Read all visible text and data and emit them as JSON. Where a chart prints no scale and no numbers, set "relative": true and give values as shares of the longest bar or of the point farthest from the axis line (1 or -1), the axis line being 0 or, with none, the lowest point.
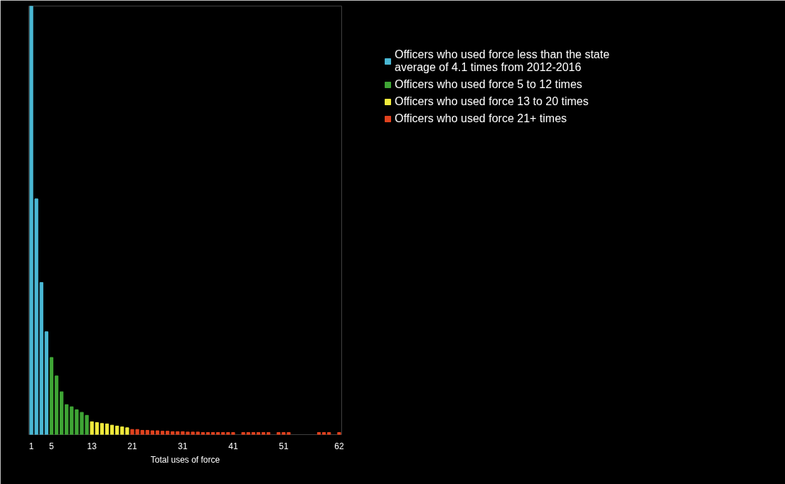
{
  "chart_data": {
    "type": "bar",
    "relative": true,
    "xlabel": "Total uses of force",
    "legend": "top right",
    "grid": false,
    "categories": [
      "1",
      null,
      null,
      null,
      "5",
      null,
      null,
      null,
      null,
      null,
      null,
      null,
      "13",
      null,
      null,
      null,
      null,
      null,
      null,
      null,
      "21",
      null,
      null,
      null,
      null,
      null,
      null,
      null,
      null,
      null,
      "31",
      null,
      null,
      null,
      null,
      null,
      null,
      null,
      null,
      null,
      "41",
      null,
      null,
      null,
      null,
      null,
      null,
      null,
      null,
      null,
      "51",
      null,
      null,
      null,
      null,
      null,
      null,
      null,
      null,
      null,
      null,
      "62"
    ],
    "series": [
      {
        "name": "Officers who used force less than the state average of 4.1 times from 2012-2016",
        "color": "#4ab8d4",
        "values": [
          1.0,
          0.55,
          0.355,
          0.24,
          null,
          null,
          null,
          null,
          null,
          null,
          null,
          null,
          null,
          null,
          null,
          null,
          null,
          null,
          null,
          null,
          null,
          null,
          null,
          null,
          null,
          null,
          null,
          null,
          null,
          null,
          null,
          null,
          null,
          null,
          null,
          null,
          null,
          null,
          null,
          null,
          null,
          null,
          null,
          null,
          null,
          null,
          null,
          null,
          null,
          null,
          null,
          null,
          null,
          null,
          null,
          null,
          null,
          null,
          null,
          null,
          null,
          null
        ]
      },
      {
        "name": "Officers who used force 5 to 12 times",
        "color": "#3fa535",
        "values": [
          null,
          null,
          null,
          null,
          0.18,
          0.137,
          0.1,
          0.07,
          0.065,
          0.058,
          0.052,
          0.045,
          null,
          null,
          null,
          null,
          null,
          null,
          null,
          null,
          null,
          null,
          null,
          null,
          null,
          null,
          null,
          null,
          null,
          null,
          null,
          null,
          null,
          null,
          null,
          null,
          null,
          null,
          null,
          null,
          null,
          null,
          null,
          null,
          null,
          null,
          null,
          null,
          null,
          null,
          null,
          null,
          null,
          null,
          null,
          null,
          null,
          null,
          null,
          null,
          null,
          null
        ]
      },
      {
        "name": "Officers who used force 13 to 20 times",
        "color": "#f0ea3c",
        "values": [
          null,
          null,
          null,
          null,
          null,
          null,
          null,
          null,
          null,
          null,
          null,
          null,
          0.03,
          0.028,
          0.026,
          0.025,
          0.022,
          0.02,
          0.018,
          0.016,
          null,
          null,
          null,
          null,
          null,
          null,
          null,
          null,
          null,
          null,
          null,
          null,
          null,
          null,
          null,
          null,
          null,
          null,
          null,
          null,
          null,
          null,
          null,
          null,
          null,
          null,
          null,
          null,
          null,
          null,
          null,
          null,
          null,
          null,
          null,
          null,
          null,
          null,
          null,
          null,
          null,
          null
        ]
      },
      {
        "name": "Officers who used force 21+ times",
        "color": "#e0421e",
        "values": [
          null,
          null,
          null,
          null,
          null,
          null,
          null,
          null,
          null,
          null,
          null,
          null,
          null,
          null,
          null,
          null,
          null,
          null,
          null,
          null,
          0.012,
          0.012,
          0.01,
          0.01,
          0.009,
          0.009,
          0.008,
          0.008,
          0.007,
          0.007,
          0.007,
          0.006,
          0.006,
          0.006,
          0.005,
          0.005,
          0.005,
          0.005,
          0.005,
          0.005,
          0.005,
          null,
          0.005,
          0.005,
          0.005,
          0.005,
          0.005,
          0.005,
          null,
          0.005,
          0.005,
          0.005,
          null,
          null,
          null,
          null,
          null,
          0.005,
          0.005,
          0.005,
          null,
          0.005
        ]
      }
    ]
  }
}
